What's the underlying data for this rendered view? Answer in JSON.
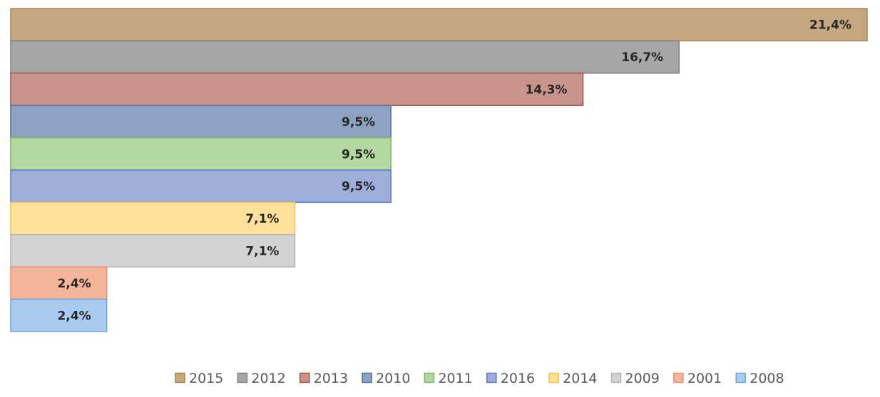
{
  "chart_data": {
    "type": "bar",
    "orientation": "horizontal",
    "grid": false,
    "legend_position": "bottom",
    "xlim": [
      0,
      21.4
    ],
    "series": [
      {
        "name": "2015",
        "value": 21.4,
        "label": "21,4%",
        "color": "#C4A67F",
        "border": "#A8834E"
      },
      {
        "name": "2012",
        "value": 16.7,
        "label": "16,7%",
        "color": "#A6A6A6",
        "border": "#7F7F7F"
      },
      {
        "name": "2013",
        "value": 14.3,
        "label": "14,3%",
        "color": "#C9948B",
        "border": "#A2543F"
      },
      {
        "name": "2010",
        "value": 9.5,
        "label": "9,5%",
        "color": "#8DA2C1",
        "border": "#4F6F9E"
      },
      {
        "name": "2011",
        "value": 9.5,
        "label": "9,5%",
        "color": "#B4D8A1",
        "border": "#7DB85C"
      },
      {
        "name": "2016",
        "value": 9.5,
        "label": "9,5%",
        "color": "#9DAEDB",
        "border": "#5B78C7"
      },
      {
        "name": "2014",
        "value": 7.1,
        "label": "7,1%",
        "color": "#FEE19A",
        "border": "#F5C04A"
      },
      {
        "name": "2009",
        "value": 7.1,
        "label": "7,1%",
        "color": "#D3D3D3",
        "border": "#B3B3B3"
      },
      {
        "name": "2001",
        "value": 2.4,
        "label": "2,4%",
        "color": "#F5B59B",
        "border": "#ED8F6A"
      },
      {
        "name": "2008",
        "value": 2.4,
        "label": "2,4%",
        "color": "#A9CBEF",
        "border": "#6FA6DF"
      }
    ]
  }
}
